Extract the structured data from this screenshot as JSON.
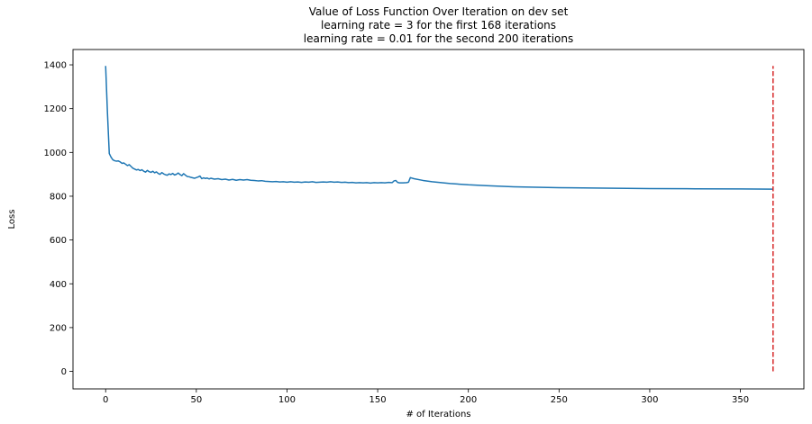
{
  "chart_data": {
    "type": "line",
    "title_lines": [
      "Value of Loss Function Over Iteration on dev set",
      "learning rate = 3 for the first 168 iterations",
      "learning rate = 0.01 for the second 200 iterations"
    ],
    "xlabel": "# of Iterations",
    "ylabel": "Loss",
    "xlim": [
      -18,
      385
    ],
    "ylim": [
      -80,
      1470
    ],
    "xticks": [
      0,
      50,
      100,
      150,
      200,
      250,
      300,
      350
    ],
    "yticks": [
      0,
      200,
      400,
      600,
      800,
      1000,
      1200,
      1400
    ],
    "grid": false,
    "series": [
      {
        "color": "#1f77b4",
        "points": [
          [
            0,
            1395
          ],
          [
            1,
            1180
          ],
          [
            2,
            995
          ],
          [
            3,
            978
          ],
          [
            4,
            966
          ],
          [
            5,
            962
          ],
          [
            6,
            960
          ],
          [
            7,
            961
          ],
          [
            8,
            957
          ],
          [
            9,
            950
          ],
          [
            10,
            952
          ],
          [
            11,
            946
          ],
          [
            12,
            940
          ],
          [
            13,
            944
          ],
          [
            14,
            936
          ],
          [
            15,
            928
          ],
          [
            16,
            924
          ],
          [
            17,
            920
          ],
          [
            18,
            922
          ],
          [
            19,
            917
          ],
          [
            20,
            921
          ],
          [
            21,
            914
          ],
          [
            22,
            910
          ],
          [
            23,
            918
          ],
          [
            24,
            912
          ],
          [
            25,
            909
          ],
          [
            26,
            914
          ],
          [
            27,
            907
          ],
          [
            28,
            911
          ],
          [
            29,
            904
          ],
          [
            30,
            900
          ],
          [
            31,
            908
          ],
          [
            32,
            902
          ],
          [
            33,
            898
          ],
          [
            34,
            896
          ],
          [
            35,
            902
          ],
          [
            36,
            899
          ],
          [
            37,
            904
          ],
          [
            38,
            897
          ],
          [
            39,
            900
          ],
          [
            40,
            906
          ],
          [
            41,
            899
          ],
          [
            42,
            894
          ],
          [
            43,
            903
          ],
          [
            44,
            896
          ],
          [
            45,
            890
          ],
          [
            46,
            889
          ],
          [
            47,
            886
          ],
          [
            48,
            884
          ],
          [
            49,
            882
          ],
          [
            50,
            885
          ],
          [
            51,
            888
          ],
          [
            52,
            892
          ],
          [
            53,
            880
          ],
          [
            54,
            884
          ],
          [
            55,
            881
          ],
          [
            56,
            883
          ],
          [
            57,
            879
          ],
          [
            58,
            882
          ],
          [
            60,
            878
          ],
          [
            62,
            880
          ],
          [
            64,
            876
          ],
          [
            66,
            878
          ],
          [
            68,
            874
          ],
          [
            70,
            877
          ],
          [
            72,
            873
          ],
          [
            74,
            876
          ],
          [
            76,
            874
          ],
          [
            78,
            876
          ],
          [
            80,
            873
          ],
          [
            82,
            872
          ],
          [
            84,
            870
          ],
          [
            86,
            871
          ],
          [
            88,
            868
          ],
          [
            90,
            867
          ],
          [
            92,
            866
          ],
          [
            94,
            867
          ],
          [
            96,
            865
          ],
          [
            98,
            866
          ],
          [
            100,
            864
          ],
          [
            102,
            866
          ],
          [
            104,
            864
          ],
          [
            106,
            865
          ],
          [
            108,
            863
          ],
          [
            110,
            865
          ],
          [
            112,
            864
          ],
          [
            114,
            866
          ],
          [
            116,
            863
          ],
          [
            118,
            864
          ],
          [
            120,
            865
          ],
          [
            122,
            864
          ],
          [
            124,
            866
          ],
          [
            126,
            864
          ],
          [
            128,
            865
          ],
          [
            130,
            863
          ],
          [
            132,
            864
          ],
          [
            134,
            862
          ],
          [
            136,
            863
          ],
          [
            138,
            861
          ],
          [
            140,
            862
          ],
          [
            142,
            861
          ],
          [
            144,
            862
          ],
          [
            146,
            860
          ],
          [
            148,
            862
          ],
          [
            150,
            861
          ],
          [
            152,
            862
          ],
          [
            154,
            861
          ],
          [
            156,
            863
          ],
          [
            158,
            862
          ],
          [
            159,
            870
          ],
          [
            160,
            872
          ],
          [
            161,
            863
          ],
          [
            162,
            861
          ],
          [
            164,
            861
          ],
          [
            166,
            862
          ],
          [
            167,
            864
          ],
          [
            168,
            885
          ],
          [
            170,
            880
          ],
          [
            175,
            872
          ],
          [
            180,
            866
          ],
          [
            190,
            858
          ],
          [
            200,
            852
          ],
          [
            210,
            848
          ],
          [
            225,
            843
          ],
          [
            250,
            839
          ],
          [
            275,
            837
          ],
          [
            300,
            835
          ],
          [
            325,
            834
          ],
          [
            350,
            833
          ],
          [
            368,
            832
          ]
        ]
      }
    ],
    "vline": {
      "x": 368,
      "y_from": 0,
      "y_to": 1395,
      "color": "#d62728",
      "style": "dashed"
    }
  }
}
